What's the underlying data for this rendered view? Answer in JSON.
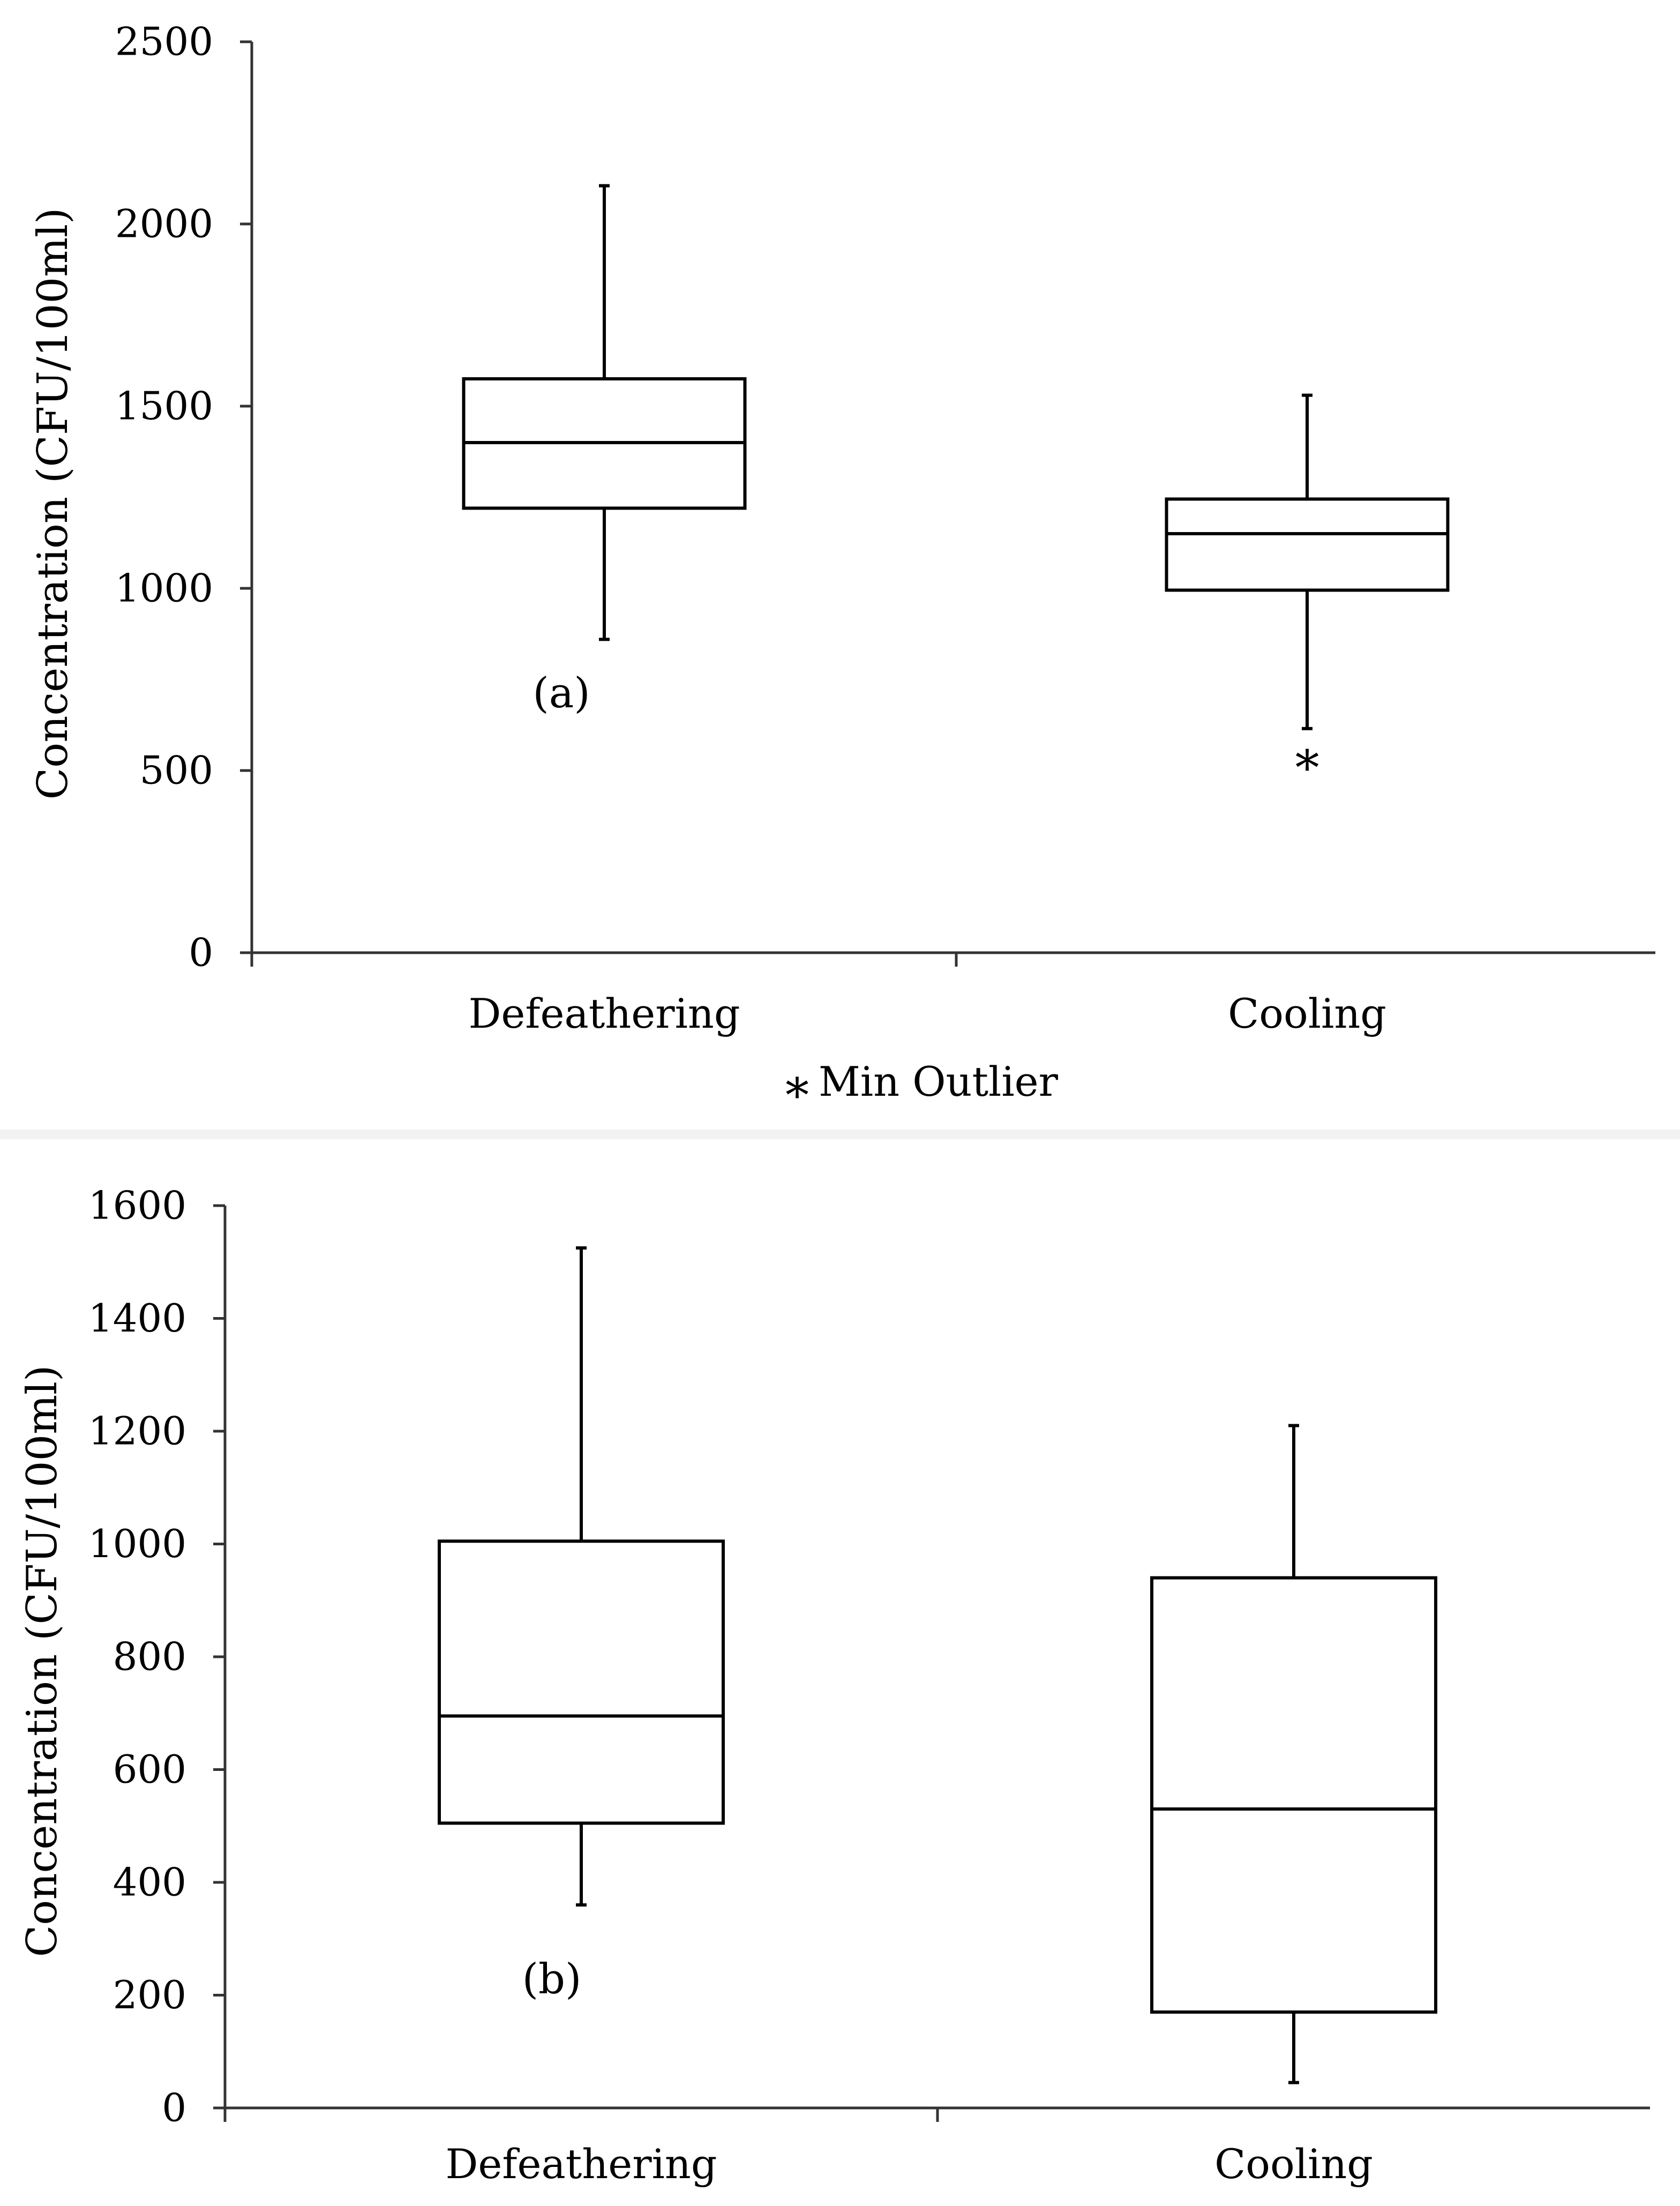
{
  "chart_data": [
    {
      "type": "box",
      "panel_label": "(a)",
      "ylabel": "Concentration (CFU/100ml)",
      "xlabel": "",
      "ylim": [
        0,
        2500
      ],
      "yticks": [
        0,
        500,
        1000,
        1500,
        2000,
        2500
      ],
      "categories": [
        "Defeathering",
        "Cooling"
      ],
      "boxes": [
        {
          "name": "Defeathering",
          "min": 860,
          "q1": 1220,
          "median": 1400,
          "q3": 1575,
          "max": 2105
        },
        {
          "name": "Cooling",
          "min": 615,
          "q1": 995,
          "median": 1150,
          "q3": 1245,
          "max": 1530,
          "outliers": [
            525
          ]
        }
      ],
      "legend": {
        "label": "Min Outlier",
        "marker": "∗",
        "color": "#ff33ff",
        "position": "bottom-center"
      }
    },
    {
      "type": "box",
      "panel_label": "(b)",
      "ylabel": "Concentration (CFU/100ml)",
      "xlabel": "",
      "ylim": [
        0,
        1600
      ],
      "yticks": [
        0,
        200,
        400,
        600,
        800,
        1000,
        1200,
        1400,
        1600
      ],
      "categories": [
        "Defeathering",
        "Cooling"
      ],
      "boxes": [
        {
          "name": "Defeathering",
          "min": 360,
          "q1": 505,
          "median": 695,
          "q3": 1005,
          "max": 1525
        },
        {
          "name": "Cooling",
          "min": 45,
          "q1": 170,
          "median": 530,
          "q3": 940,
          "max": 1210
        }
      ]
    }
  ]
}
